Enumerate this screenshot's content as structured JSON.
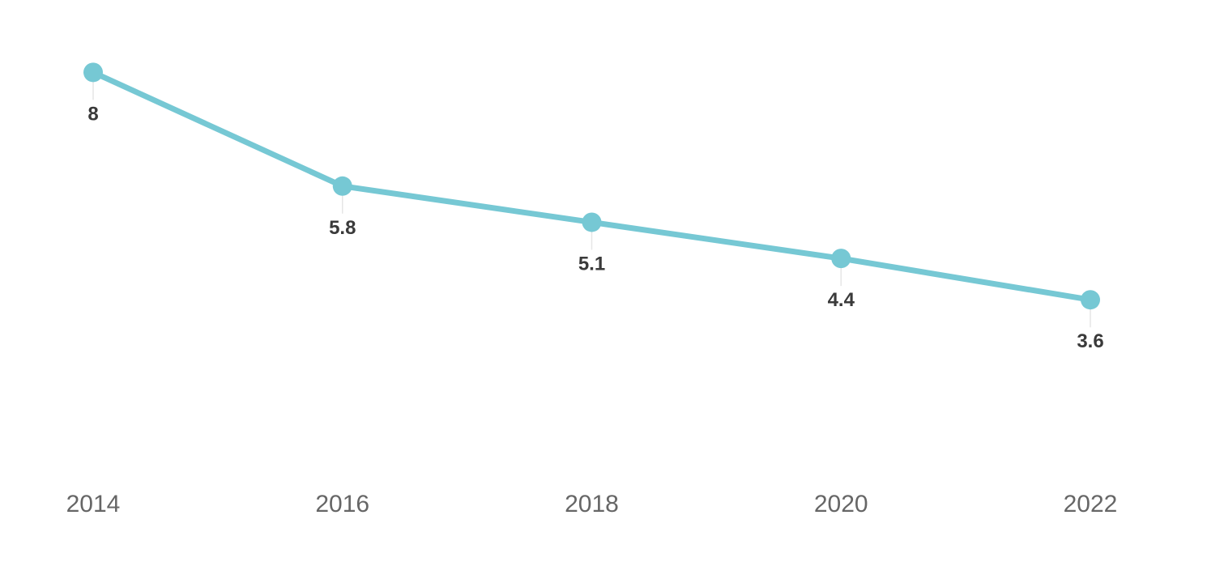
{
  "chart_data": {
    "type": "line",
    "title": "",
    "xlabel": "",
    "ylabel": "",
    "categories": [
      "2014",
      "2016",
      "2018",
      "2020",
      "2022"
    ],
    "series": [
      {
        "values": [
          8,
          5.8,
          5.1,
          4.4,
          3.6
        ],
        "data_labels": [
          "8",
          "5.8",
          "5.1",
          "4.4",
          "3.6"
        ],
        "color": "#76c8d4"
      }
    ],
    "ylim": [
      0,
      9.4
    ],
    "grid": false,
    "legend": "none",
    "colors": {
      "line": "#76c8d4",
      "label": "#3a3a3a",
      "tick": "#666666",
      "leader": "#e6e6e6"
    }
  }
}
